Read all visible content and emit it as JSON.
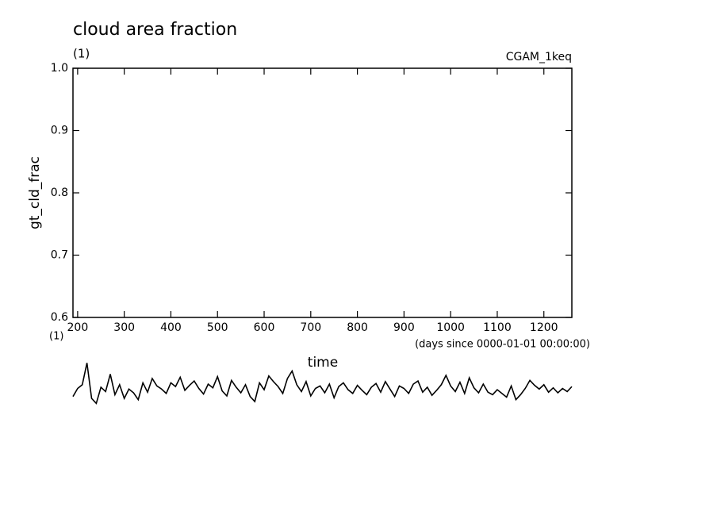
{
  "chart_data": {
    "type": "line",
    "title": "cloud area fraction",
    "units_top": "(1)",
    "experiment": "CGAM_1keq",
    "y_label": "gt_cld_frac",
    "units_bottom": "(1)",
    "x_units": "(days since 0000-01-01 00:00:00)",
    "x_label": "time",
    "xlim": [
      190,
      1260
    ],
    "ylim": [
      0.6,
      1.0
    ],
    "xticks": [
      200,
      300,
      400,
      500,
      600,
      700,
      800,
      900,
      1000,
      1100,
      1200
    ],
    "yticks": [
      0.6,
      0.7,
      0.8,
      0.9,
      {
        "value": 1.0,
        "label": "1.0"
      }
    ],
    "x": [
      190,
      200,
      210,
      220,
      230,
      240,
      250,
      260,
      270,
      280,
      290,
      300,
      310,
      320,
      330,
      340,
      350,
      360,
      370,
      380,
      390,
      400,
      410,
      420,
      430,
      440,
      450,
      460,
      470,
      480,
      490,
      500,
      510,
      520,
      530,
      540,
      550,
      560,
      570,
      580,
      590,
      600,
      610,
      620,
      630,
      640,
      650,
      660,
      670,
      680,
      690,
      700,
      710,
      720,
      730,
      740,
      750,
      760,
      770,
      780,
      790,
      800,
      810,
      820,
      830,
      840,
      850,
      860,
      870,
      880,
      890,
      900,
      910,
      920,
      930,
      940,
      950,
      960,
      970,
      980,
      990,
      1000,
      1010,
      1020,
      1030,
      1040,
      1050,
      1060,
      1070,
      1080,
      1090,
      1100,
      1110,
      1120,
      1130,
      1140,
      1150,
      1160,
      1170,
      1180,
      1190,
      1200,
      1210,
      1220,
      1230,
      1240,
      1250,
      1260
    ],
    "series": [
      {
        "color": "#000000",
        "values": [
          0.473,
          0.486,
          0.492,
          0.527,
          0.47,
          0.462,
          0.488,
          0.481,
          0.509,
          0.476,
          0.492,
          0.47,
          0.485,
          0.479,
          0.468,
          0.495,
          0.48,
          0.502,
          0.49,
          0.485,
          0.478,
          0.495,
          0.489,
          0.504,
          0.483,
          0.491,
          0.498,
          0.486,
          0.477,
          0.493,
          0.487,
          0.505,
          0.482,
          0.474,
          0.499,
          0.488,
          0.479,
          0.492,
          0.473,
          0.465,
          0.495,
          0.484,
          0.506,
          0.497,
          0.489,
          0.478,
          0.502,
          0.514,
          0.492,
          0.481,
          0.497,
          0.474,
          0.486,
          0.49,
          0.479,
          0.493,
          0.471,
          0.489,
          0.495,
          0.484,
          0.478,
          0.491,
          0.483,
          0.476,
          0.488,
          0.494,
          0.48,
          0.497,
          0.485,
          0.473,
          0.49,
          0.486,
          0.478,
          0.493,
          0.498,
          0.48,
          0.488,
          0.475,
          0.483,
          0.492,
          0.507,
          0.49,
          0.481,
          0.496,
          0.478,
          0.503,
          0.487,
          0.479,
          0.493,
          0.48,
          0.476,
          0.484,
          0.478,
          0.472,
          0.49,
          0.468,
          0.476,
          0.486,
          0.499,
          0.491,
          0.485,
          0.492,
          0.48,
          0.487,
          0.479,
          0.486,
          0.481,
          0.489
        ]
      }
    ]
  }
}
